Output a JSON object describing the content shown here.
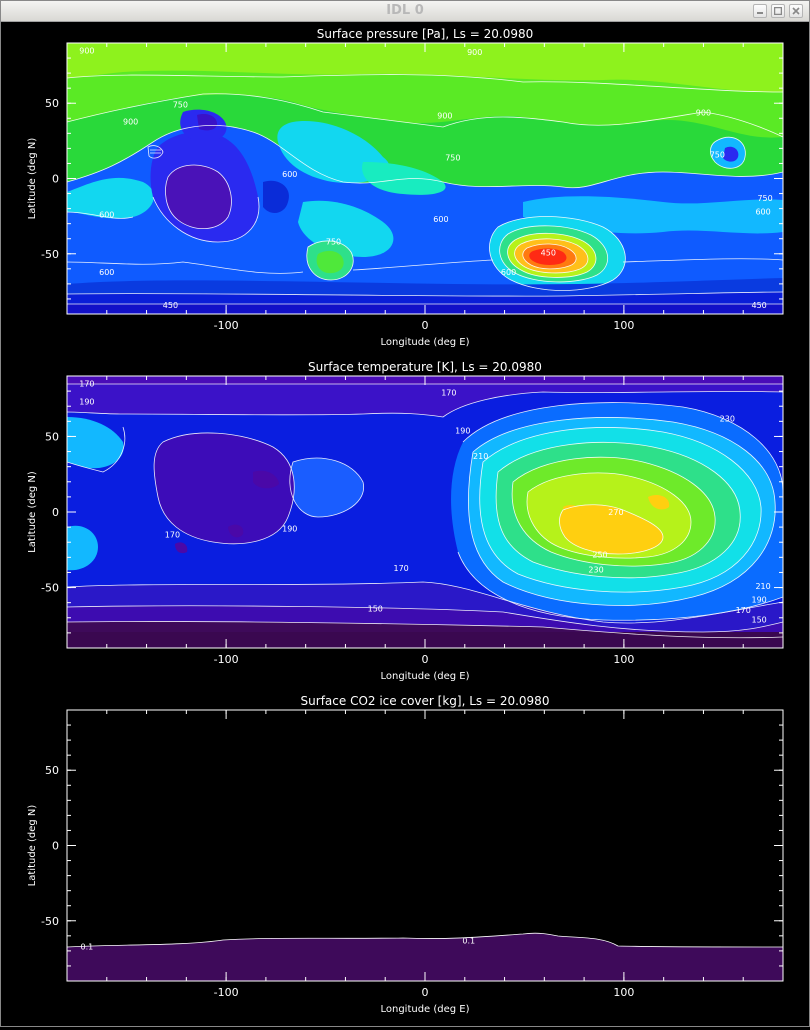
{
  "window": {
    "title": "IDL 0"
  },
  "icons": {
    "minimize": "minimize-icon",
    "maximize": "maximize-icon",
    "close": "close-icon"
  },
  "chart_data": [
    {
      "type": "contour",
      "title": "Surface pressure [Pa], Ls =       20.0980",
      "xlabel": "Longitude (deg E)",
      "ylabel": "Latitude (deg N)",
      "xlim": [
        -180,
        180
      ],
      "ylim": [
        -90,
        90
      ],
      "xticks": [
        -100,
        0,
        100
      ],
      "yticks": [
        -50,
        0,
        50
      ],
      "contour_labels": [
        {
          "text": "900",
          "x": -170,
          "y": 85
        },
        {
          "text": "900",
          "x": 25,
          "y": 84
        },
        {
          "text": "900",
          "x": -148,
          "y": 38
        },
        {
          "text": "750",
          "x": -123,
          "y": 49
        },
        {
          "text": "900",
          "x": 10,
          "y": 42
        },
        {
          "text": "750",
          "x": 14,
          "y": 14
        },
        {
          "text": "600",
          "x": -68,
          "y": 3
        },
        {
          "text": "600",
          "x": -160,
          "y": -24
        },
        {
          "text": "600",
          "x": 8,
          "y": -27
        },
        {
          "text": "750",
          "x": -46,
          "y": -42
        },
        {
          "text": "600",
          "x": -160,
          "y": -62
        },
        {
          "text": "600",
          "x": 42,
          "y": -62
        },
        {
          "text": "450",
          "x": 62,
          "y": -49
        },
        {
          "text": "900",
          "x": 140,
          "y": 44
        },
        {
          "text": "750",
          "x": 147,
          "y": 16
        },
        {
          "text": "750",
          "x": 171,
          "y": -13
        },
        {
          "text": "600",
          "x": 170,
          "y": -22
        },
        {
          "text": "450",
          "x": -128,
          "y": -84
        },
        {
          "text": "450",
          "x": 168,
          "y": -84
        }
      ]
    },
    {
      "type": "contour",
      "title": "Surface temperature [K], Ls =       20.0980",
      "xlabel": "Longitude (deg E)",
      "ylabel": "Latitude (deg N)",
      "xlim": [
        -180,
        180
      ],
      "ylim": [
        -90,
        90
      ],
      "xticks": [
        -100,
        0,
        100
      ],
      "yticks": [
        -50,
        0,
        50
      ],
      "contour_labels": [
        {
          "text": "170",
          "x": -170,
          "y": 85
        },
        {
          "text": "190",
          "x": -170,
          "y": 73
        },
        {
          "text": "170",
          "x": 12,
          "y": 79
        },
        {
          "text": "190",
          "x": 19,
          "y": 54
        },
        {
          "text": "210",
          "x": 28,
          "y": 37
        },
        {
          "text": "230",
          "x": 152,
          "y": 62
        },
        {
          "text": "270",
          "x": 96,
          "y": 0
        },
        {
          "text": "250",
          "x": 88,
          "y": -28
        },
        {
          "text": "230",
          "x": 86,
          "y": -38
        },
        {
          "text": "210",
          "x": 170,
          "y": -49
        },
        {
          "text": "190",
          "x": 168,
          "y": -58
        },
        {
          "text": "170",
          "x": -127,
          "y": -15
        },
        {
          "text": "190",
          "x": -68,
          "y": -11
        },
        {
          "text": "170",
          "x": -12,
          "y": -37
        },
        {
          "text": "150",
          "x": -25,
          "y": -64
        },
        {
          "text": "170",
          "x": 160,
          "y": -65
        },
        {
          "text": "150",
          "x": 168,
          "y": -71
        }
      ]
    },
    {
      "type": "contour",
      "title": "Surface CO2 ice cover [kg], Ls =       20.0980",
      "xlabel": "Longitude (deg E)",
      "ylabel": "Latitude (deg N)",
      "xlim": [
        -180,
        180
      ],
      "ylim": [
        -90,
        90
      ],
      "xticks": [
        -100,
        0,
        100
      ],
      "yticks": [
        -50,
        0,
        50
      ],
      "contour_labels": [
        {
          "text": "0.1",
          "x": -170,
          "y": -67
        },
        {
          "text": "0.1",
          "x": 22,
          "y": -63
        }
      ]
    }
  ]
}
